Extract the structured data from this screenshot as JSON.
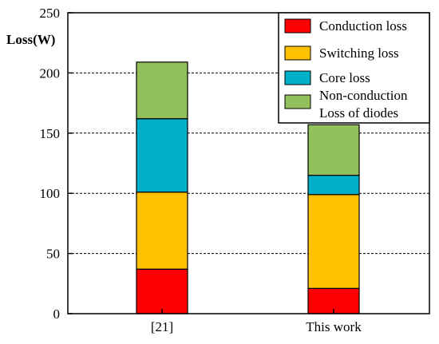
{
  "chart_data": {
    "type": "bar",
    "stacked": true,
    "categories": [
      "[21]",
      "This work"
    ],
    "series": [
      {
        "name": "Conduction loss",
        "values": [
          37,
          21
        ],
        "color": "#ff0000"
      },
      {
        "name": "Switching loss",
        "values": [
          64,
          78
        ],
        "color": "#ffc000"
      },
      {
        "name": "Core loss",
        "values": [
          61,
          16
        ],
        "color": "#00b0c8"
      },
      {
        "name": "Non-conduction Loss of diodes",
        "label_lines": [
          "Non-conduction",
          "Loss of diodes"
        ],
        "values": [
          47,
          42
        ],
        "color": "#92c05a"
      }
    ],
    "title": "",
    "xlabel": "",
    "ylabel": "Loss(W)",
    "ylim": [
      0,
      250
    ],
    "yticks": [
      0,
      50,
      100,
      150,
      200,
      250
    ],
    "grid": "horizontal dashed",
    "legend_position": "top-right"
  }
}
